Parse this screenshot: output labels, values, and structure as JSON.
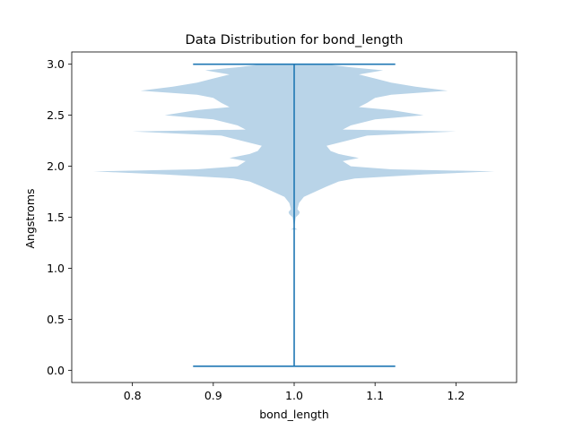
{
  "chart_data": {
    "type": "violin",
    "title": "Data Distribution for bond_length",
    "xlabel": "bond_length",
    "ylabel": "Angstroms",
    "xlim": [
      0.725,
      1.275
    ],
    "ylim": [
      -0.12,
      3.12
    ],
    "x_ticks": [
      0.8,
      0.9,
      1.0,
      1.1,
      1.2
    ],
    "x_tick_labels": [
      "0.8",
      "0.9",
      "1.0",
      "1.1",
      "1.2"
    ],
    "y_ticks": [
      0.0,
      0.5,
      1.0,
      1.5,
      2.0,
      2.5,
      3.0
    ],
    "y_tick_labels": [
      "0.0",
      "0.5",
      "1.0",
      "1.5",
      "2.0",
      "2.5",
      "3.0"
    ],
    "grid": false,
    "position": 1.0,
    "min": 0.04,
    "max": 3.0,
    "violin_color": "#b9d4e8",
    "line_color": "#1f77b4",
    "density_profile": [
      [
        1.38,
        0.004
      ],
      [
        1.4,
        0.0
      ],
      [
        1.5,
        0.002
      ],
      [
        1.53,
        0.006
      ],
      [
        1.55,
        0.007
      ],
      [
        1.58,
        0.004
      ],
      [
        1.64,
        0.006
      ],
      [
        1.7,
        0.012
      ],
      [
        1.75,
        0.026
      ],
      [
        1.8,
        0.04
      ],
      [
        1.85,
        0.055
      ],
      [
        1.88,
        0.075
      ],
      [
        1.92,
        0.16
      ],
      [
        1.95,
        0.248
      ],
      [
        1.97,
        0.12
      ],
      [
        2.0,
        0.07
      ],
      [
        2.05,
        0.06
      ],
      [
        2.08,
        0.08
      ],
      [
        2.12,
        0.055
      ],
      [
        2.15,
        0.045
      ],
      [
        2.2,
        0.04
      ],
      [
        2.25,
        0.065
      ],
      [
        2.3,
        0.09
      ],
      [
        2.34,
        0.2
      ],
      [
        2.36,
        0.06
      ],
      [
        2.4,
        0.07
      ],
      [
        2.46,
        0.1
      ],
      [
        2.5,
        0.16
      ],
      [
        2.55,
        0.12
      ],
      [
        2.58,
        0.08
      ],
      [
        2.62,
        0.09
      ],
      [
        2.67,
        0.1
      ],
      [
        2.7,
        0.12
      ],
      [
        2.74,
        0.19
      ],
      [
        2.78,
        0.15
      ],
      [
        2.82,
        0.12
      ],
      [
        2.86,
        0.1
      ],
      [
        2.9,
        0.08
      ],
      [
        2.94,
        0.11
      ],
      [
        2.97,
        0.07
      ],
      [
        3.0,
        0.04
      ]
    ]
  }
}
